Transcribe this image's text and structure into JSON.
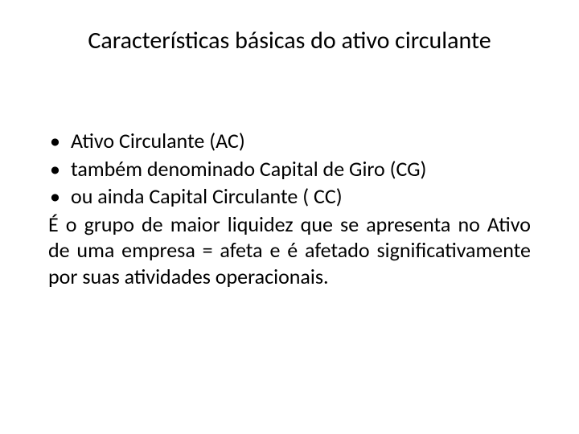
{
  "title": "Características básicas do ativo circulante",
  "bullets": [
    "Ativo Circulante (AC)",
    "também denominado Capital de Giro (CG)",
    "ou ainda  Capital Circulante ( CC)"
  ],
  "paragraph": "É o grupo de maior liquidez que se apresenta no Ativo de uma empresa = afeta e é afetado significativamente por suas atividades operacionais.",
  "colors": {
    "background": "#ffffff",
    "text": "#000000"
  },
  "font": {
    "family": "Calibri",
    "title_size_pt": 30,
    "body_size_pt": 26
  }
}
